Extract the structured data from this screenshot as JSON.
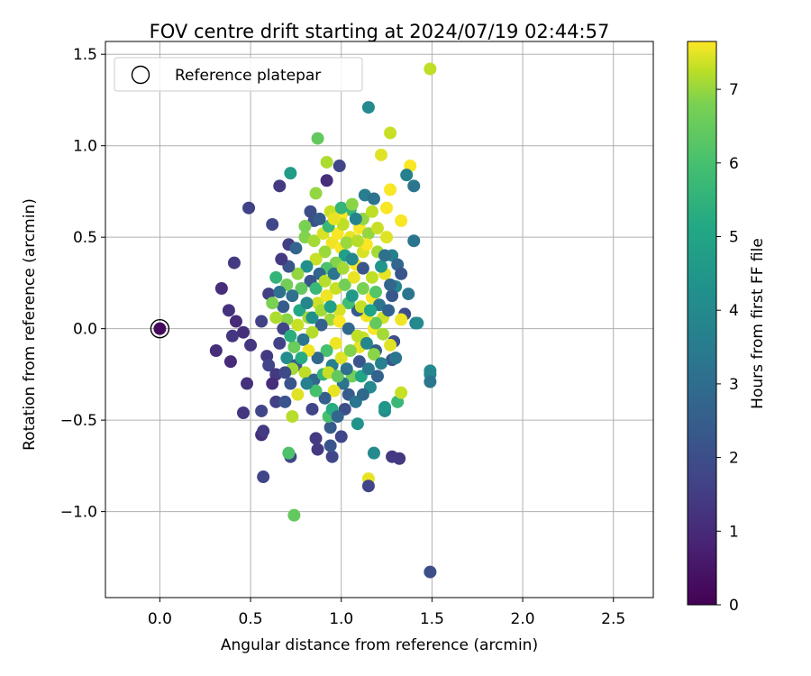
{
  "chart_data": {
    "type": "scatter",
    "title": "FOV centre drift starting at 2024/07/19 02:44:57",
    "xlabel": "Angular distance from reference (arcmin)",
    "ylabel": "Rotation from reference (arcmin)",
    "xlim": [
      -0.3,
      2.72
    ],
    "ylim": [
      -1.47,
      1.57
    ],
    "x_ticks": [
      "0.0",
      "0.5",
      "1.0",
      "1.5",
      "2.0",
      "2.5"
    ],
    "x_tick_values": [
      0,
      0.5,
      1.0,
      1.5,
      2.0,
      2.5
    ],
    "y_ticks": [
      "−1.0",
      "−0.5",
      "0.0",
      "0.5",
      "1.0",
      "1.5"
    ],
    "y_tick_values": [
      -1.0,
      -0.5,
      0,
      0.5,
      1.0,
      1.5
    ],
    "grid": true,
    "legend": {
      "entry": "Reference platepar",
      "placement": "top-left"
    },
    "reference_point": {
      "x": 0.0,
      "y": 0.0,
      "hours": 0.2
    },
    "colorbar": {
      "label": "Hours from first FF file",
      "range": [
        0,
        7.65
      ],
      "colormap": "viridis",
      "ticks": [
        "0",
        "1",
        "2",
        "3",
        "4",
        "5",
        "6",
        "7"
      ],
      "tick_values": [
        0,
        1,
        2,
        3,
        4,
        5,
        6,
        7
      ]
    },
    "points": [
      [
        1.49,
        1.42,
        6.9
      ],
      [
        1.15,
        1.21,
        3.6
      ],
      [
        0.87,
        1.04,
        5.8
      ],
      [
        1.27,
        1.07,
        7.0
      ],
      [
        0.99,
        0.89,
        1.6
      ],
      [
        0.92,
        0.91,
        6.7
      ],
      [
        1.22,
        0.95,
        7.3
      ],
      [
        1.38,
        0.89,
        7.6
      ],
      [
        0.72,
        0.85,
        4.2
      ],
      [
        1.36,
        0.84,
        3.3
      ],
      [
        1.4,
        0.78,
        3.0
      ],
      [
        0.66,
        0.78,
        1.3
      ],
      [
        0.92,
        0.81,
        1.0
      ],
      [
        1.13,
        0.73,
        3.2
      ],
      [
        1.18,
        0.71,
        2.9
      ],
      [
        1.27,
        0.76,
        7.6
      ],
      [
        0.86,
        0.74,
        6.4
      ],
      [
        0.49,
        0.66,
        1.5
      ],
      [
        1.05,
        0.65,
        5.0
      ],
      [
        0.62,
        0.57,
        1.6
      ],
      [
        1.0,
        0.62,
        7.6
      ],
      [
        1.25,
        0.66,
        7.6
      ],
      [
        1.33,
        0.59,
        7.6
      ],
      [
        0.85,
        0.59,
        1.8
      ],
      [
        1.4,
        0.48,
        2.9
      ],
      [
        0.41,
        0.36,
        1.3
      ],
      [
        0.34,
        0.22,
        1.0
      ],
      [
        0.38,
        0.1,
        1.1
      ],
      [
        0.56,
        0.04,
        1.5
      ],
      [
        0.42,
        0.04,
        0.9
      ],
      [
        0.46,
        -0.02,
        1.0
      ],
      [
        0.4,
        -0.04,
        1.2
      ],
      [
        0.5,
        -0.09,
        1.2
      ],
      [
        0.31,
        -0.12,
        1.0
      ],
      [
        0.39,
        -0.18,
        0.9
      ],
      [
        0.59,
        -0.15,
        1.3
      ],
      [
        0.6,
        -0.2,
        1.6
      ],
      [
        0.64,
        -0.25,
        1.3
      ],
      [
        0.48,
        -0.3,
        1.1
      ],
      [
        0.62,
        -0.3,
        1.0
      ],
      [
        0.46,
        -0.46,
        1.2
      ],
      [
        0.56,
        -0.45,
        1.6
      ],
      [
        0.64,
        -0.4,
        1.4
      ],
      [
        0.69,
        -0.4,
        2.0
      ],
      [
        0.56,
        -0.58,
        1.0
      ],
      [
        0.57,
        -0.56,
        1.3
      ],
      [
        0.57,
        -0.81,
        1.6
      ],
      [
        0.72,
        -0.7,
        1.6
      ],
      [
        0.71,
        -0.68,
        5.5
      ],
      [
        0.74,
        -1.02,
        5.8
      ],
      [
        0.86,
        -0.6,
        1.3
      ],
      [
        0.87,
        -0.66,
        1.3
      ],
      [
        0.95,
        -0.7,
        1.6
      ],
      [
        0.94,
        -0.64,
        2.0
      ],
      [
        1.0,
        -0.59,
        1.6
      ],
      [
        0.94,
        -0.54,
        2.2
      ],
      [
        1.09,
        -0.52,
        3.9
      ],
      [
        0.93,
        -0.48,
        5.4
      ],
      [
        0.95,
        -0.44,
        4.7
      ],
      [
        0.73,
        -0.48,
        6.8
      ],
      [
        0.84,
        -0.44,
        1.6
      ],
      [
        1.15,
        -0.82,
        7.4
      ],
      [
        1.15,
        -0.86,
        1.6
      ],
      [
        1.18,
        -0.68,
        3.6
      ],
      [
        1.28,
        -0.7,
        1.3
      ],
      [
        1.32,
        -0.71,
        1.3
      ],
      [
        1.24,
        -0.45,
        3.6
      ],
      [
        1.24,
        -0.43,
        4.0
      ],
      [
        1.31,
        -0.4,
        5.1
      ],
      [
        1.33,
        -0.35,
        7.0
      ],
      [
        1.49,
        -0.23,
        3.6
      ],
      [
        1.49,
        -0.25,
        3.5
      ],
      [
        1.49,
        -0.29,
        3.0
      ],
      [
        1.49,
        -1.33,
        1.8
      ],
      [
        1.41,
        0.03,
        3.4
      ],
      [
        1.42,
        0.03,
        3.6
      ],
      [
        1.37,
        0.19,
        3.0
      ],
      [
        1.35,
        0.08,
        1.8
      ],
      [
        1.33,
        0.05,
        7.5
      ],
      [
        1.29,
        -0.07,
        1.8
      ],
      [
        1.28,
        -0.17,
        2.0
      ],
      [
        1.3,
        -0.16,
        3.0
      ],
      [
        1.18,
        0.0,
        7.6
      ],
      [
        1.12,
        -0.05,
        7.0
      ],
      [
        1.1,
        -0.1,
        7.4
      ],
      [
        0.6,
        0.19,
        1.4
      ],
      [
        0.64,
        0.28,
        5.0
      ],
      [
        0.68,
        0.12,
        2.2
      ],
      [
        0.7,
        0.05,
        6.3
      ],
      [
        0.66,
        -0.08,
        1.5
      ],
      [
        0.71,
        0.46,
        1.4
      ],
      [
        0.75,
        0.44,
        2.5
      ],
      [
        0.8,
        0.5,
        6.2
      ],
      [
        0.85,
        0.48,
        6.6
      ],
      [
        0.8,
        0.56,
        6.1
      ],
      [
        0.9,
        0.52,
        7.2
      ],
      [
        0.95,
        0.47,
        7.5
      ],
      [
        1.0,
        0.44,
        7.6
      ],
      [
        1.05,
        0.5,
        7.4
      ],
      [
        1.1,
        0.55,
        7.6
      ],
      [
        1.15,
        0.52,
        6.4
      ],
      [
        1.2,
        0.55,
        7.0
      ],
      [
        1.25,
        0.5,
        7.3
      ],
      [
        1.28,
        0.4,
        3.3
      ],
      [
        1.31,
        0.35,
        2.5
      ],
      [
        1.33,
        0.3,
        2.0
      ],
      [
        1.3,
        0.23,
        3.5
      ],
      [
        1.24,
        0.3,
        7.4
      ],
      [
        1.2,
        0.42,
        6.6
      ],
      [
        1.12,
        0.42,
        7.2
      ],
      [
        1.08,
        0.35,
        7.6
      ],
      [
        1.02,
        0.4,
        4.3
      ],
      [
        0.97,
        0.36,
        6.2
      ],
      [
        0.92,
        0.33,
        5.5
      ],
      [
        0.88,
        0.3,
        2.5
      ],
      [
        0.83,
        0.26,
        2.0
      ],
      [
        0.78,
        0.22,
        5.8
      ],
      [
        0.73,
        0.18,
        2.8
      ],
      [
        0.77,
        0.1,
        4.6
      ],
      [
        0.82,
        0.06,
        6.5
      ],
      [
        0.87,
        0.14,
        7.1
      ],
      [
        0.92,
        0.18,
        7.5
      ],
      [
        0.97,
        0.22,
        7.0
      ],
      [
        1.02,
        0.24,
        6.0
      ],
      [
        1.07,
        0.28,
        7.4
      ],
      [
        1.12,
        0.22,
        6.1
      ],
      [
        1.17,
        0.17,
        7.6
      ],
      [
        1.21,
        0.13,
        3.0
      ],
      [
        1.23,
        0.06,
        7.1
      ],
      [
        1.19,
        0.03,
        5.8
      ],
      [
        1.14,
        0.07,
        7.5
      ],
      [
        1.09,
        0.1,
        2.2
      ],
      [
        1.04,
        0.14,
        5.3
      ],
      [
        0.99,
        0.1,
        7.2
      ],
      [
        0.94,
        0.05,
        6.5
      ],
      [
        0.89,
        0.02,
        2.3
      ],
      [
        0.84,
        -0.02,
        6.8
      ],
      [
        0.79,
        -0.06,
        3.0
      ],
      [
        0.74,
        -0.1,
        5.9
      ],
      [
        0.7,
        -0.16,
        3.7
      ],
      [
        0.75,
        -0.2,
        2.2
      ],
      [
        0.8,
        -0.24,
        6.9
      ],
      [
        0.85,
        -0.28,
        2.5
      ],
      [
        0.9,
        -0.25,
        5.0
      ],
      [
        0.95,
        -0.2,
        3.3
      ],
      [
        1.0,
        -0.16,
        7.3
      ],
      [
        1.05,
        -0.12,
        6.2
      ],
      [
        1.1,
        -0.18,
        2.0
      ],
      [
        1.06,
        -0.26,
        6.0
      ],
      [
        1.01,
        -0.3,
        2.9
      ],
      [
        0.96,
        -0.34,
        7.4
      ],
      [
        0.91,
        -0.38,
        2.3
      ],
      [
        0.86,
        -0.34,
        5.4
      ],
      [
        0.81,
        -0.3,
        3.3
      ],
      [
        0.76,
        -0.36,
        7.3
      ],
      [
        0.72,
        -0.3,
        2.0
      ],
      [
        1.04,
        -0.36,
        2.2
      ],
      [
        1.08,
        -0.4,
        3.0
      ],
      [
        1.02,
        -0.44,
        1.8
      ],
      [
        0.98,
        -0.48,
        2.5
      ],
      [
        1.11,
        -0.26,
        4.5
      ],
      [
        1.15,
        -0.22,
        3.1
      ],
      [
        1.19,
        -0.12,
        2.2
      ],
      [
        1.23,
        -0.03,
        6.6
      ],
      [
        1.27,
        -0.09,
        7.3
      ],
      [
        1.26,
        0.1,
        2.4
      ],
      [
        1.28,
        0.18,
        2.1
      ],
      [
        1.27,
        0.24,
        2.5
      ],
      [
        1.17,
        0.28,
        6.9
      ],
      [
        1.12,
        0.33,
        2.0
      ],
      [
        1.06,
        0.38,
        3.5
      ],
      [
        1.03,
        0.47,
        6.5
      ],
      [
        0.98,
        0.52,
        7.6
      ],
      [
        0.93,
        0.56,
        5.1
      ],
      [
        0.88,
        0.6,
        2.2
      ],
      [
        0.83,
        0.64,
        1.8
      ],
      [
        0.94,
        0.64,
        7.0
      ],
      [
        1.0,
        0.66,
        5.0
      ],
      [
        1.06,
        0.68,
        6.3
      ],
      [
        1.12,
        0.6,
        6.4
      ],
      [
        1.17,
        0.64,
        6.9
      ],
      [
        1.08,
        0.6,
        3.4
      ],
      [
        1.01,
        0.57,
        6.9
      ],
      [
        0.96,
        0.6,
        7.4
      ],
      [
        0.91,
        0.42,
        6.5
      ],
      [
        0.86,
        0.38,
        7.0
      ],
      [
        0.81,
        0.34,
        3.8
      ],
      [
        0.76,
        0.3,
        6.4
      ],
      [
        0.71,
        0.34,
        2.0
      ],
      [
        0.67,
        0.38,
        1.3
      ],
      [
        0.7,
        0.24,
        6.0
      ],
      [
        0.66,
        0.2,
        2.8
      ],
      [
        0.62,
        0.14,
        6.1
      ],
      [
        0.64,
        0.06,
        6.7
      ],
      [
        0.68,
        0.0,
        1.6
      ],
      [
        0.72,
        -0.04,
        4.8
      ],
      [
        0.76,
        0.02,
        7.0
      ],
      [
        0.81,
        0.14,
        3.5
      ],
      [
        0.86,
        0.22,
        5.1
      ],
      [
        0.91,
        0.26,
        6.8
      ],
      [
        0.96,
        0.3,
        3.0
      ],
      [
        1.01,
        0.33,
        6.6
      ],
      [
        1.06,
        0.18,
        4.1
      ],
      [
        1.11,
        0.12,
        7.0
      ],
      [
        1.16,
        0.1,
        4.5
      ],
      [
        1.19,
        0.2,
        5.6
      ],
      [
        1.22,
        0.34,
        4.0
      ],
      [
        1.24,
        0.4,
        2.8
      ],
      [
        1.14,
        0.46,
        7.6
      ],
      [
        1.09,
        0.48,
        6.8
      ],
      [
        0.84,
        0.06,
        3.8
      ],
      [
        0.89,
        0.1,
        6.6
      ],
      [
        0.94,
        0.12,
        4.3
      ],
      [
        0.99,
        0.04,
        7.6
      ],
      [
        1.04,
        0.0,
        2.6
      ],
      [
        1.09,
        -0.04,
        6.9
      ],
      [
        1.14,
        -0.08,
        3.5
      ],
      [
        1.18,
        -0.14,
        6.3
      ],
      [
        1.22,
        -0.19,
        3.3
      ],
      [
        1.2,
        -0.26,
        2.4
      ],
      [
        1.16,
        -0.32,
        3.6
      ],
      [
        1.12,
        -0.36,
        2.6
      ],
      [
        0.97,
        -0.08,
        7.5
      ],
      [
        0.92,
        -0.12,
        5.4
      ],
      [
        0.87,
        -0.16,
        2.6
      ],
      [
        0.82,
        -0.12,
        7.5
      ],
      [
        0.78,
        -0.16,
        4.7
      ],
      [
        0.73,
        -0.22,
        6.6
      ],
      [
        0.69,
        -0.24,
        1.7
      ],
      [
        0.93,
        -0.24,
        7.0
      ],
      [
        0.98,
        -0.26,
        5.8
      ],
      [
        1.03,
        -0.22,
        2.8
      ]
    ]
  }
}
